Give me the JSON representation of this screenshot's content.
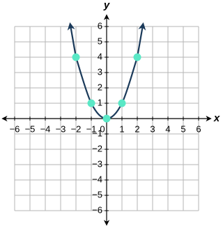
{
  "chart_data": {
    "type": "line",
    "x_label": "x",
    "y_label": "y",
    "x": [
      -2,
      -1,
      0,
      1,
      2
    ],
    "values": [
      4,
      1,
      0,
      1,
      4
    ],
    "color": "#1b3a5a",
    "marker_color": "#5ae8c6",
    "xlim": [
      -6,
      6
    ],
    "ylim": [
      -6,
      6
    ],
    "xticks": [
      {
        "value": -6,
        "label": "−6"
      },
      {
        "value": -5,
        "label": "−5"
      },
      {
        "value": -4,
        "label": "−4"
      },
      {
        "value": -3,
        "label": "−3"
      },
      {
        "value": -2,
        "label": "−2"
      },
      {
        "value": -1,
        "label": "−1"
      },
      0,
      1,
      2,
      3,
      4,
      5,
      6
    ],
    "yticks": [
      {
        "value": -6,
        "label": "−6"
      },
      {
        "value": -5,
        "label": "−5"
      },
      {
        "value": -4,
        "label": "−4"
      },
      {
        "value": -3,
        "label": "−3"
      },
      {
        "value": -2,
        "label": "−2"
      },
      {
        "value": -1,
        "label": "−1"
      },
      1,
      2,
      3,
      4,
      5,
      6
    ],
    "grid": true
  }
}
